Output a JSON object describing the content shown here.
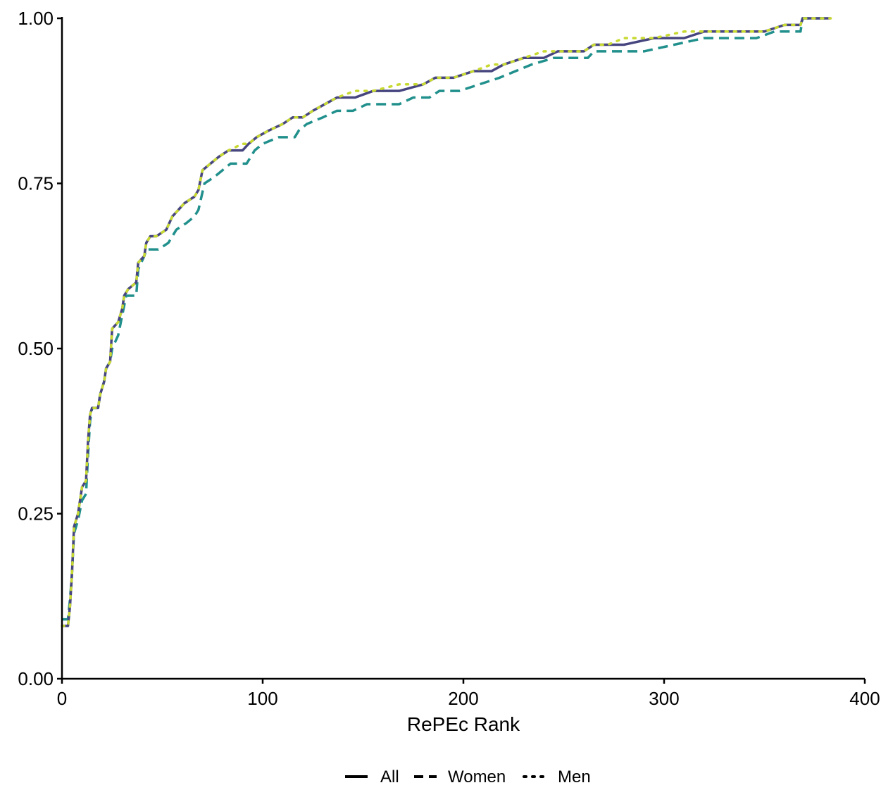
{
  "chart_data": {
    "type": "line",
    "title": "",
    "xlabel": "RePEc Rank",
    "ylabel": "",
    "xlim": [
      0,
      400
    ],
    "ylim": [
      0,
      1
    ],
    "x_ticks": [
      0,
      100,
      200,
      300,
      400
    ],
    "x_tick_labels": [
      "0",
      "100",
      "200",
      "300",
      "400"
    ],
    "y_ticks": [
      0,
      0.25,
      0.5,
      0.75,
      1
    ],
    "y_tick_labels": [
      "0.00",
      "0.25",
      "0.50",
      "0.75",
      "1.00"
    ],
    "grid": false,
    "legend_position": "bottom",
    "series": [
      {
        "name": "All",
        "style": "solid",
        "color": "#46457f",
        "points": [
          [
            0,
            0.08
          ],
          [
            3,
            0.08
          ],
          [
            4,
            0.11
          ],
          [
            5,
            0.16
          ],
          [
            6,
            0.23
          ],
          [
            8,
            0.25
          ],
          [
            9,
            0.27
          ],
          [
            10,
            0.29
          ],
          [
            12,
            0.3
          ],
          [
            13,
            0.36
          ],
          [
            14,
            0.4
          ],
          [
            15,
            0.41
          ],
          [
            18,
            0.41
          ],
          [
            19,
            0.43
          ],
          [
            21,
            0.45
          ],
          [
            22,
            0.47
          ],
          [
            24,
            0.48
          ],
          [
            25,
            0.53
          ],
          [
            28,
            0.54
          ],
          [
            30,
            0.56
          ],
          [
            31,
            0.58
          ],
          [
            33,
            0.59
          ],
          [
            37,
            0.6
          ],
          [
            38,
            0.63
          ],
          [
            41,
            0.64
          ],
          [
            42,
            0.66
          ],
          [
            44,
            0.67
          ],
          [
            47,
            0.67
          ],
          [
            52,
            0.68
          ],
          [
            55,
            0.7
          ],
          [
            58,
            0.71
          ],
          [
            61,
            0.72
          ],
          [
            66,
            0.73
          ],
          [
            68,
            0.74
          ],
          [
            70,
            0.77
          ],
          [
            74,
            0.78
          ],
          [
            78,
            0.79
          ],
          [
            83,
            0.8
          ],
          [
            90,
            0.8
          ],
          [
            93,
            0.81
          ],
          [
            97,
            0.82
          ],
          [
            103,
            0.83
          ],
          [
            110,
            0.84
          ],
          [
            115,
            0.85
          ],
          [
            120,
            0.85
          ],
          [
            125,
            0.86
          ],
          [
            131,
            0.87
          ],
          [
            137,
            0.88
          ],
          [
            146,
            0.88
          ],
          [
            155,
            0.89
          ],
          [
            168,
            0.89
          ],
          [
            180,
            0.9
          ],
          [
            186,
            0.91
          ],
          [
            195,
            0.91
          ],
          [
            205,
            0.92
          ],
          [
            214,
            0.92
          ],
          [
            220,
            0.93
          ],
          [
            230,
            0.94
          ],
          [
            240,
            0.94
          ],
          [
            247,
            0.95
          ],
          [
            260,
            0.95
          ],
          [
            265,
            0.96
          ],
          [
            272,
            0.96
          ],
          [
            280,
            0.96
          ],
          [
            295,
            0.97
          ],
          [
            310,
            0.97
          ],
          [
            320,
            0.98
          ],
          [
            345,
            0.98
          ],
          [
            350,
            0.98
          ],
          [
            360,
            0.99
          ],
          [
            368,
            0.99
          ],
          [
            369,
            1.0
          ],
          [
            383,
            1.0
          ]
        ]
      },
      {
        "name": "Women",
        "style": "dashed",
        "color": "#21908c",
        "points": [
          [
            0,
            0.09
          ],
          [
            3,
            0.09
          ],
          [
            4,
            0.12
          ],
          [
            5,
            0.16
          ],
          [
            6,
            0.22
          ],
          [
            8,
            0.24
          ],
          [
            10,
            0.27
          ],
          [
            12,
            0.28
          ],
          [
            13,
            0.34
          ],
          [
            14,
            0.39
          ],
          [
            15,
            0.41
          ],
          [
            18,
            0.41
          ],
          [
            19,
            0.43
          ],
          [
            21,
            0.45
          ],
          [
            22,
            0.47
          ],
          [
            24,
            0.48
          ],
          [
            25,
            0.5
          ],
          [
            28,
            0.52
          ],
          [
            30,
            0.55
          ],
          [
            32,
            0.58
          ],
          [
            37,
            0.58
          ],
          [
            38,
            0.62
          ],
          [
            41,
            0.64
          ],
          [
            42,
            0.65
          ],
          [
            48,
            0.65
          ],
          [
            53,
            0.66
          ],
          [
            57,
            0.68
          ],
          [
            62,
            0.69
          ],
          [
            66,
            0.7
          ],
          [
            68,
            0.71
          ],
          [
            71,
            0.75
          ],
          [
            76,
            0.76
          ],
          [
            80,
            0.77
          ],
          [
            84,
            0.78
          ],
          [
            92,
            0.78
          ],
          [
            96,
            0.8
          ],
          [
            100,
            0.81
          ],
          [
            108,
            0.82
          ],
          [
            116,
            0.82
          ],
          [
            118,
            0.83
          ],
          [
            122,
            0.84
          ],
          [
            130,
            0.85
          ],
          [
            137,
            0.86
          ],
          [
            145,
            0.86
          ],
          [
            152,
            0.87
          ],
          [
            168,
            0.87
          ],
          [
            175,
            0.88
          ],
          [
            183,
            0.88
          ],
          [
            188,
            0.89
          ],
          [
            198,
            0.89
          ],
          [
            208,
            0.9
          ],
          [
            218,
            0.91
          ],
          [
            226,
            0.92
          ],
          [
            234,
            0.93
          ],
          [
            245,
            0.94
          ],
          [
            262,
            0.94
          ],
          [
            265,
            0.95
          ],
          [
            290,
            0.95
          ],
          [
            305,
            0.96
          ],
          [
            320,
            0.97
          ],
          [
            346,
            0.97
          ],
          [
            355,
            0.98
          ],
          [
            368,
            0.98
          ],
          [
            369,
            1.0
          ],
          [
            383,
            1.0
          ]
        ]
      },
      {
        "name": "Men",
        "style": "dotted",
        "color": "#c8d932",
        "points": [
          [
            0,
            0.08
          ],
          [
            3,
            0.08
          ],
          [
            4,
            0.11
          ],
          [
            5,
            0.16
          ],
          [
            6,
            0.23
          ],
          [
            8,
            0.25
          ],
          [
            9,
            0.27
          ],
          [
            10,
            0.29
          ],
          [
            12,
            0.3
          ],
          [
            13,
            0.36
          ],
          [
            14,
            0.4
          ],
          [
            15,
            0.41
          ],
          [
            18,
            0.41
          ],
          [
            19,
            0.43
          ],
          [
            21,
            0.45
          ],
          [
            22,
            0.47
          ],
          [
            24,
            0.48
          ],
          [
            25,
            0.53
          ],
          [
            28,
            0.54
          ],
          [
            30,
            0.56
          ],
          [
            31,
            0.58
          ],
          [
            33,
            0.59
          ],
          [
            37,
            0.6
          ],
          [
            38,
            0.63
          ],
          [
            41,
            0.64
          ],
          [
            42,
            0.66
          ],
          [
            44,
            0.67
          ],
          [
            47,
            0.67
          ],
          [
            52,
            0.68
          ],
          [
            55,
            0.7
          ],
          [
            58,
            0.71
          ],
          [
            61,
            0.72
          ],
          [
            66,
            0.73
          ],
          [
            68,
            0.74
          ],
          [
            70,
            0.77
          ],
          [
            74,
            0.78
          ],
          [
            78,
            0.79
          ],
          [
            83,
            0.8
          ],
          [
            90,
            0.81
          ],
          [
            93,
            0.81
          ],
          [
            97,
            0.82
          ],
          [
            103,
            0.83
          ],
          [
            110,
            0.84
          ],
          [
            115,
            0.85
          ],
          [
            120,
            0.85
          ],
          [
            125,
            0.86
          ],
          [
            131,
            0.87
          ],
          [
            137,
            0.88
          ],
          [
            146,
            0.89
          ],
          [
            155,
            0.89
          ],
          [
            168,
            0.9
          ],
          [
            180,
            0.9
          ],
          [
            186,
            0.91
          ],
          [
            195,
            0.91
          ],
          [
            205,
            0.92
          ],
          [
            214,
            0.93
          ],
          [
            220,
            0.93
          ],
          [
            230,
            0.94
          ],
          [
            240,
            0.95
          ],
          [
            247,
            0.95
          ],
          [
            260,
            0.95
          ],
          [
            265,
            0.96
          ],
          [
            272,
            0.96
          ],
          [
            280,
            0.97
          ],
          [
            295,
            0.97
          ],
          [
            310,
            0.98
          ],
          [
            320,
            0.98
          ],
          [
            345,
            0.98
          ],
          [
            350,
            0.98
          ],
          [
            360,
            0.99
          ],
          [
            368,
            0.99
          ],
          [
            369,
            1.0
          ],
          [
            383,
            1.0
          ]
        ]
      }
    ]
  }
}
